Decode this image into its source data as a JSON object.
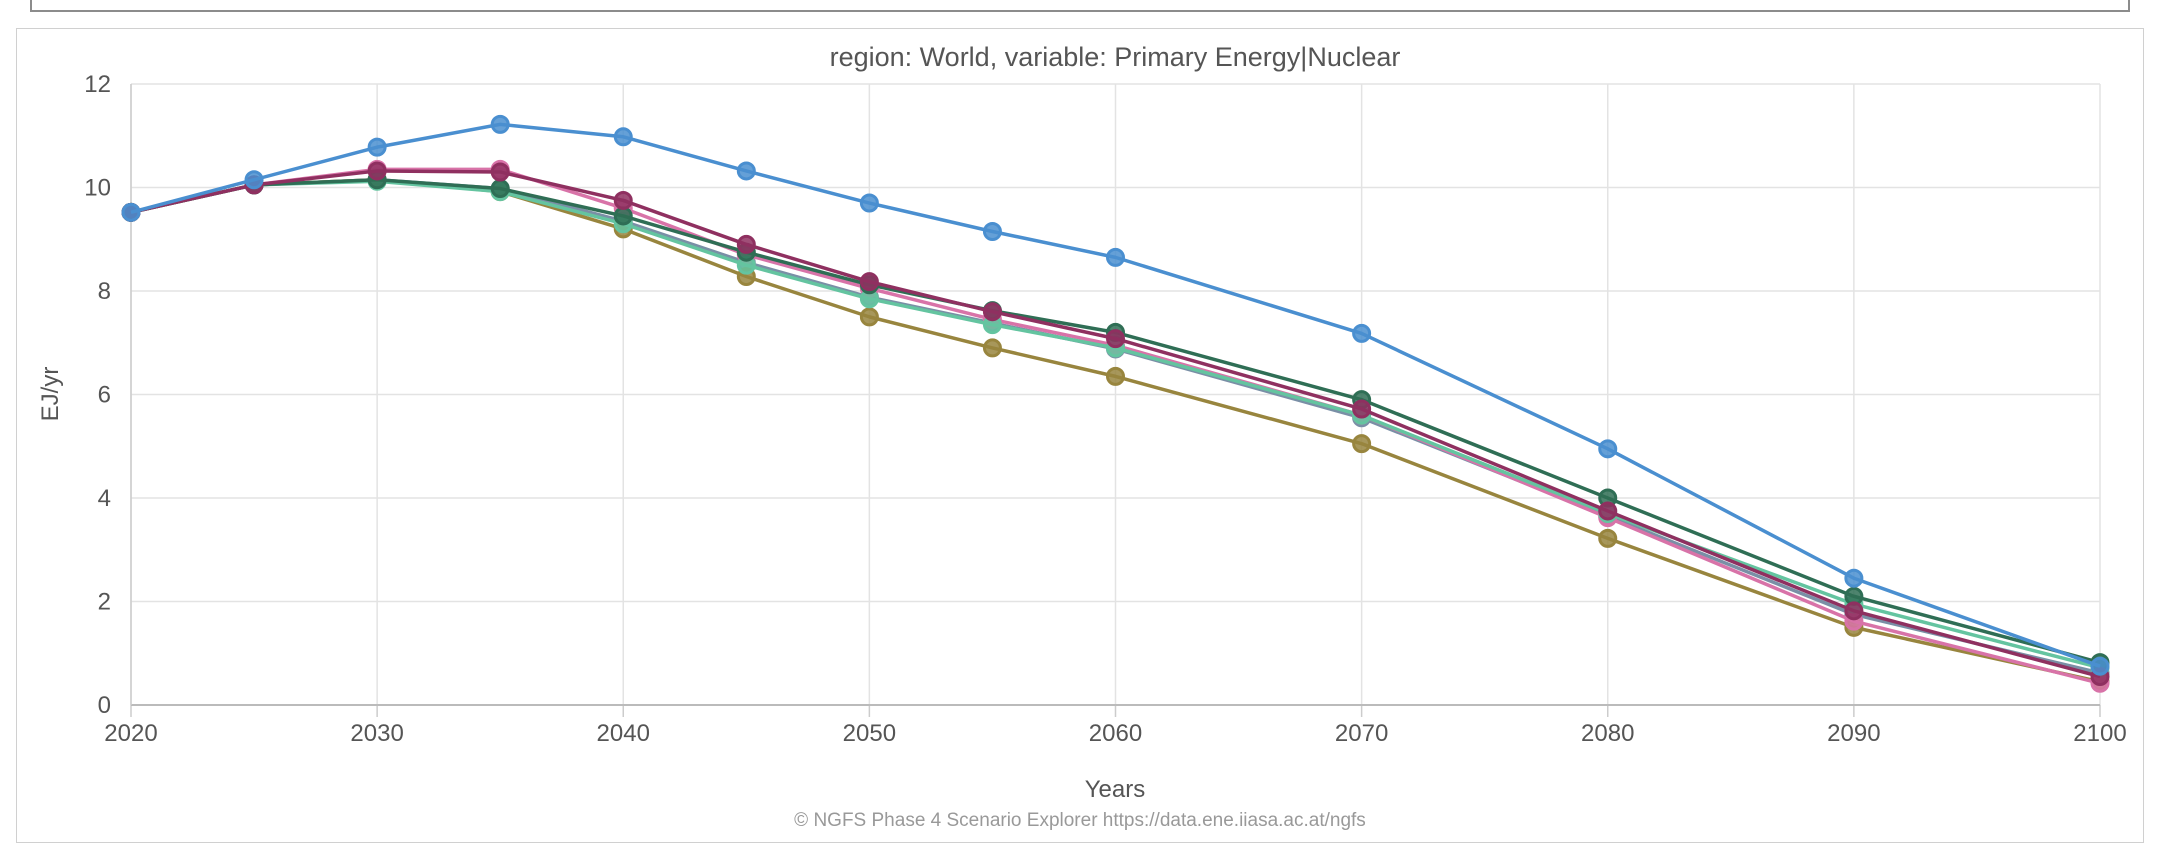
{
  "chart_data": {
    "type": "line",
    "title": "region: World, variable: Primary Energy|Nuclear",
    "xlabel": "Years",
    "ylabel": "EJ/yr",
    "xlim": [
      2020,
      2100
    ],
    "ylim": [
      0,
      12
    ],
    "x_ticks": [
      2020,
      2030,
      2040,
      2050,
      2060,
      2070,
      2080,
      2090,
      2100
    ],
    "y_ticks": [
      0,
      2,
      4,
      6,
      8,
      10,
      12
    ],
    "grid": true,
    "x": [
      2020,
      2025,
      2030,
      2035,
      2040,
      2045,
      2050,
      2055,
      2060,
      2070,
      2080,
      2090,
      2100
    ],
    "series": [
      {
        "color": "#7a8fa6",
        "values": [
          9.52,
          10.05,
          10.15,
          9.98,
          9.35,
          8.55,
          7.88,
          7.38,
          6.88,
          5.55,
          3.65,
          1.75,
          0.62
        ]
      },
      {
        "color": "#98853e",
        "values": [
          9.52,
          10.05,
          10.15,
          9.92,
          9.2,
          8.28,
          7.5,
          6.9,
          6.35,
          5.05,
          3.22,
          1.5,
          0.45
        ]
      },
      {
        "color": "#d873a8",
        "values": [
          9.52,
          10.05,
          10.35,
          10.35,
          9.6,
          8.7,
          8.05,
          7.45,
          6.95,
          5.6,
          3.62,
          1.62,
          0.42
        ]
      },
      {
        "color": "#64c4a0",
        "values": [
          9.52,
          10.05,
          10.12,
          9.92,
          9.3,
          8.5,
          7.85,
          7.35,
          6.9,
          5.6,
          3.7,
          1.95,
          0.72
        ]
      },
      {
        "color": "#2f6e55",
        "values": [
          9.52,
          10.05,
          10.15,
          9.98,
          9.45,
          8.75,
          8.12,
          7.62,
          7.2,
          5.9,
          4.0,
          2.1,
          0.82
        ]
      },
      {
        "color": "#8f3060",
        "values": [
          9.52,
          10.05,
          10.32,
          10.3,
          9.75,
          8.9,
          8.18,
          7.6,
          7.08,
          5.72,
          3.75,
          1.82,
          0.55
        ]
      },
      {
        "color": "#4a8fd0",
        "values": [
          9.52,
          10.15,
          10.78,
          11.22,
          10.98,
          10.32,
          9.7,
          9.15,
          8.65,
          7.18,
          4.95,
          2.45,
          0.75
        ]
      }
    ]
  },
  "credits": "© NGFS Phase 4 Scenario Explorer https://data.ene.iiasa.ac.at/ngfs"
}
